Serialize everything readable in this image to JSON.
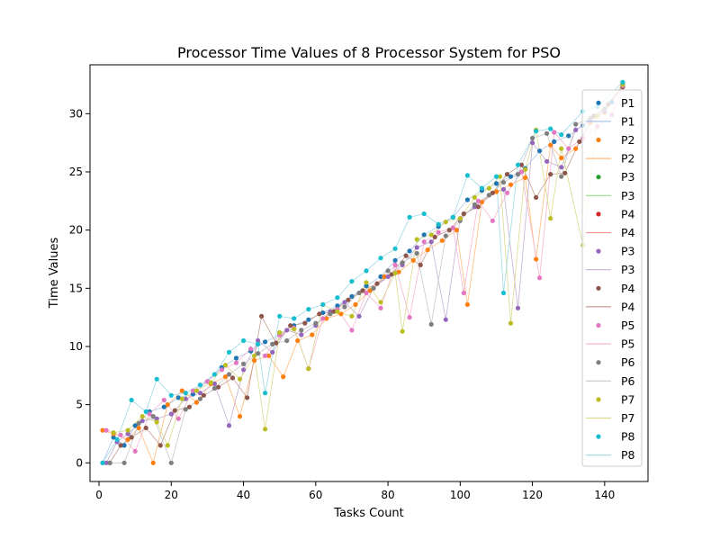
{
  "chart_data": {
    "type": "scatter",
    "title": "Processor Time Values of 8 Processor System for PSO",
    "xlabel": "Tasks Count",
    "ylabel": "Time Values",
    "xlim": [
      -2.5,
      152
    ],
    "ylim": [
      -1.6,
      34.2
    ],
    "xticks": [
      0,
      20,
      40,
      60,
      80,
      100,
      120,
      140
    ],
    "yticks": [
      0,
      5,
      10,
      15,
      20,
      25,
      30
    ],
    "grid": false,
    "legend_position": "right",
    "legend": [
      {
        "label": "P1",
        "kind": "marker",
        "color": "#1f77b4"
      },
      {
        "label": "P1",
        "kind": "line",
        "color": "#aec7e8"
      },
      {
        "label": "P2",
        "kind": "marker",
        "color": "#ff7f0e"
      },
      {
        "label": "P2",
        "kind": "line",
        "color": "#ffbb78"
      },
      {
        "label": "P3",
        "kind": "marker",
        "color": "#2ca02c"
      },
      {
        "label": "P3",
        "kind": "line",
        "color": "#98df8a"
      },
      {
        "label": "P4",
        "kind": "marker",
        "color": "#d62728"
      },
      {
        "label": "P4",
        "kind": "line",
        "color": "#ff9896"
      },
      {
        "label": "P3",
        "kind": "marker",
        "color": "#9467bd"
      },
      {
        "label": "P3",
        "kind": "line",
        "color": "#c5b0d5"
      },
      {
        "label": "P4",
        "kind": "marker",
        "color": "#8c564b"
      },
      {
        "label": "P4",
        "kind": "line",
        "color": "#c49c94"
      },
      {
        "label": "P5",
        "kind": "marker",
        "color": "#e377c2"
      },
      {
        "label": "P5",
        "kind": "line",
        "color": "#f7b6d2"
      },
      {
        "label": "P6",
        "kind": "marker",
        "color": "#7f7f7f"
      },
      {
        "label": "P6",
        "kind": "line",
        "color": "#c7c7c7"
      },
      {
        "label": "P7",
        "kind": "marker",
        "color": "#bcbd22"
      },
      {
        "label": "P7",
        "kind": "line",
        "color": "#dbdb8d"
      },
      {
        "label": "P8",
        "kind": "marker",
        "color": "#17becf"
      },
      {
        "label": "P8",
        "kind": "line",
        "color": "#9edae5"
      }
    ],
    "series": [
      {
        "name": "P1",
        "color": "#1f77b4",
        "line_color": "#aec7e8",
        "x": [
          1,
          4,
          7,
          10,
          14,
          18,
          22,
          26,
          30,
          34,
          38,
          42,
          46,
          50,
          54,
          58,
          62,
          66,
          70,
          74,
          78,
          82,
          86,
          90,
          94,
          98,
          102,
          106,
          110,
          114,
          118,
          122,
          126,
          130,
          134,
          138,
          142,
          145
        ],
        "y": [
          0.0,
          2.2,
          1.5,
          3.2,
          4.4,
          4.8,
          5.6,
          5.9,
          7.0,
          8.2,
          9.0,
          9.6,
          10.4,
          11.0,
          11.8,
          12.3,
          12.9,
          13.5,
          14.3,
          15.2,
          16.0,
          17.4,
          18.2,
          19.6,
          20.3,
          21.1,
          22.6,
          23.4,
          24.0,
          24.6,
          25.3,
          26.8,
          27.6,
          28.1,
          29.0,
          29.8,
          31.0,
          32.4
        ]
      },
      {
        "name": "P2",
        "color": "#ff7f0e",
        "line_color": "#ffbb78",
        "x": [
          1,
          4,
          8,
          11,
          15,
          19,
          23,
          27,
          31,
          35,
          39,
          43,
          47,
          51,
          55,
          59,
          63,
          67,
          71,
          75,
          79,
          83,
          87,
          91,
          95,
          99,
          102,
          106,
          110,
          114,
          118,
          121,
          125,
          128,
          132,
          136,
          140,
          145
        ],
        "y": [
          2.8,
          2.5,
          2.0,
          3.0,
          0.0,
          5.0,
          6.2,
          5.2,
          6.8,
          7.4,
          4.0,
          8.8,
          9.2,
          7.4,
          10.5,
          11.0,
          12.4,
          12.8,
          13.6,
          14.8,
          16.0,
          16.4,
          17.4,
          18.3,
          19.1,
          20.0,
          13.6,
          22.4,
          23.3,
          23.9,
          24.5,
          17.5,
          27.3,
          26.2,
          27.0,
          29.2,
          30.1,
          32.6
        ]
      },
      {
        "name": "P3",
        "color": "#9467bd",
        "line_color": "#c5b0d5",
        "x": [
          2,
          5,
          8,
          12,
          16,
          20,
          24,
          28,
          32,
          36,
          40,
          44,
          48,
          52,
          56,
          60,
          64,
          68,
          72,
          76,
          80,
          84,
          88,
          92,
          96,
          100,
          104,
          108,
          112,
          116,
          120,
          124,
          128,
          132,
          136,
          140,
          145
        ],
        "y": [
          0.0,
          1.8,
          2.5,
          3.6,
          3.8,
          4.2,
          5.5,
          6.0,
          6.8,
          3.2,
          8.0,
          10.5,
          9.5,
          11.4,
          11.0,
          11.8,
          13.0,
          13.8,
          12.6,
          15.0,
          16.0,
          17.0,
          18.5,
          19.0,
          12.3,
          21.0,
          22.0,
          23.0,
          23.5,
          13.3,
          27.5,
          25.9,
          25.4,
          28.6,
          29.4,
          30.2,
          32.3
        ]
      },
      {
        "name": "P4",
        "color": "#8c564b",
        "line_color": "#c49c94",
        "x": [
          3,
          6,
          9,
          13,
          17,
          21,
          25,
          29,
          33,
          37,
          41,
          45,
          49,
          53,
          57,
          61,
          65,
          69,
          73,
          77,
          81,
          85,
          89,
          93,
          97,
          101,
          105,
          109,
          113,
          117,
          121,
          125,
          129,
          133,
          137,
          141,
          145
        ],
        "y": [
          0.0,
          1.5,
          2.2,
          3.0,
          1.5,
          4.5,
          4.8,
          5.8,
          6.5,
          7.3,
          5.6,
          12.6,
          10.3,
          11.8,
          12.0,
          12.8,
          13.0,
          14.0,
          14.8,
          15.4,
          16.2,
          17.8,
          17.0,
          19.4,
          20.0,
          21.4,
          22.0,
          23.2,
          24.8,
          25.6,
          22.8,
          24.8,
          24.9,
          27.6,
          29.8,
          30.8,
          32.3
        ]
      },
      {
        "name": "P5",
        "color": "#e377c2",
        "line_color": "#f7b6d2",
        "x": [
          2,
          6,
          10,
          14,
          18,
          22,
          26,
          30,
          34,
          38,
          42,
          46,
          50,
          54,
          58,
          62,
          66,
          70,
          74,
          78,
          82,
          86,
          90,
          94,
          98,
          101,
          105,
          109,
          113,
          117,
          122,
          126,
          130,
          134,
          138,
          142,
          145
        ],
        "y": [
          2.8,
          2.4,
          1.0,
          4.2,
          5.4,
          3.8,
          6.2,
          7.0,
          8.0,
          8.6,
          9.8,
          9.2,
          11.0,
          11.6,
          8.1,
          12.4,
          13.2,
          11.4,
          14.6,
          13.3,
          17.0,
          12.5,
          19.0,
          19.8,
          20.2,
          14.6,
          22.5,
          20.8,
          23.2,
          25.0,
          15.9,
          28.4,
          27.0,
          27.9,
          28.9,
          29.9,
          32.4
        ]
      },
      {
        "name": "P6",
        "color": "#7f7f7f",
        "line_color": "#c7c7c7",
        "x": [
          3,
          7,
          11,
          15,
          20,
          24,
          28,
          32,
          36,
          40,
          44,
          48,
          52,
          56,
          60,
          64,
          68,
          72,
          76,
          80,
          84,
          88,
          92,
          96,
          100,
          104,
          108,
          112,
          116,
          120,
          124,
          128,
          132,
          136,
          140,
          145
        ],
        "y": [
          0.0,
          0.0,
          3.4,
          4.0,
          0.0,
          4.6,
          5.5,
          6.4,
          7.6,
          8.5,
          9.4,
          10.2,
          10.5,
          11.4,
          12.0,
          12.8,
          13.4,
          14.6,
          15.0,
          16.5,
          17.2,
          18.0,
          11.9,
          19.5,
          20.8,
          22.2,
          23.0,
          24.1,
          24.8,
          27.9,
          28.3,
          24.6,
          29.1,
          29.6,
          30.4,
          32.5
        ]
      },
      {
        "name": "P7",
        "color": "#bcbd22",
        "line_color": "#dbdb8d",
        "x": [
          4,
          8,
          12,
          16,
          19,
          23,
          27,
          31,
          35,
          39,
          43,
          46,
          50,
          54,
          58,
          62,
          66,
          70,
          74,
          78,
          82,
          84,
          88,
          92,
          96,
          100,
          104,
          108,
          111,
          114,
          118,
          121,
          125,
          128,
          134,
          138,
          145
        ],
        "y": [
          2.6,
          2.8,
          4.0,
          3.5,
          1.5,
          5.5,
          6.2,
          6.9,
          8.4,
          7.2,
          9.2,
          2.9,
          11.2,
          11.5,
          8.1,
          13.6,
          13.0,
          12.6,
          15.5,
          13.8,
          16.3,
          11.3,
          19.2,
          19.6,
          20.7,
          21.0,
          22.8,
          23.6,
          24.6,
          12.0,
          25.2,
          28.6,
          21.0,
          27.0,
          18.7,
          29.8,
          32.5
        ]
      },
      {
        "name": "P8",
        "color": "#17becf",
        "line_color": "#9edae5",
        "x": [
          1,
          5,
          9,
          13,
          16,
          20,
          24,
          28,
          32,
          36,
          40,
          44,
          46,
          50,
          54,
          58,
          62,
          66,
          70,
          74,
          78,
          82,
          86,
          90,
          94,
          98,
          102,
          106,
          110,
          112,
          116,
          121,
          125,
          128,
          134,
          138,
          145
        ],
        "y": [
          0.0,
          2.0,
          5.4,
          4.4,
          7.2,
          5.8,
          6.0,
          6.7,
          7.6,
          9.5,
          10.5,
          10.2,
          6.0,
          12.6,
          12.4,
          13.2,
          13.6,
          14.2,
          15.6,
          16.5,
          17.6,
          18.4,
          21.1,
          21.4,
          20.5,
          21.1,
          24.7,
          23.6,
          24.6,
          14.6,
          25.6,
          28.5,
          28.7,
          28.2,
          30.2,
          30.6,
          32.7
        ]
      }
    ]
  }
}
